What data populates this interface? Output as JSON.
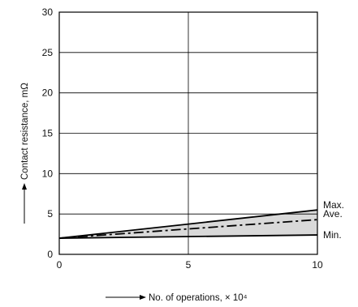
{
  "chart_data": {
    "type": "line",
    "xlabel": "No. of operations, × 10⁴",
    "ylabel": "Contact resistance, mΩ",
    "xlim": [
      0,
      10
    ],
    "ylim": [
      0,
      30
    ],
    "x_ticks": [
      "0",
      "5",
      "10"
    ],
    "y_ticks": [
      "0",
      "5",
      "10",
      "15",
      "20",
      "25",
      "30"
    ],
    "grid": true,
    "series": [
      {
        "name": "Max.",
        "x": [
          0,
          10
        ],
        "values": [
          2.0,
          5.5
        ],
        "style": "solid"
      },
      {
        "name": "Ave.",
        "x": [
          0,
          10
        ],
        "values": [
          2.0,
          4.3
        ],
        "style": "dash-dot"
      },
      {
        "name": "Min.",
        "x": [
          0,
          10
        ],
        "values": [
          2.0,
          2.4
        ],
        "style": "solid"
      }
    ],
    "shaded_band": {
      "between": [
        "Min.",
        "Max."
      ],
      "color": "#d9d9d9"
    },
    "colors": {
      "line": "#000000",
      "grid": "#000000",
      "band": "#d9d9d9"
    }
  }
}
